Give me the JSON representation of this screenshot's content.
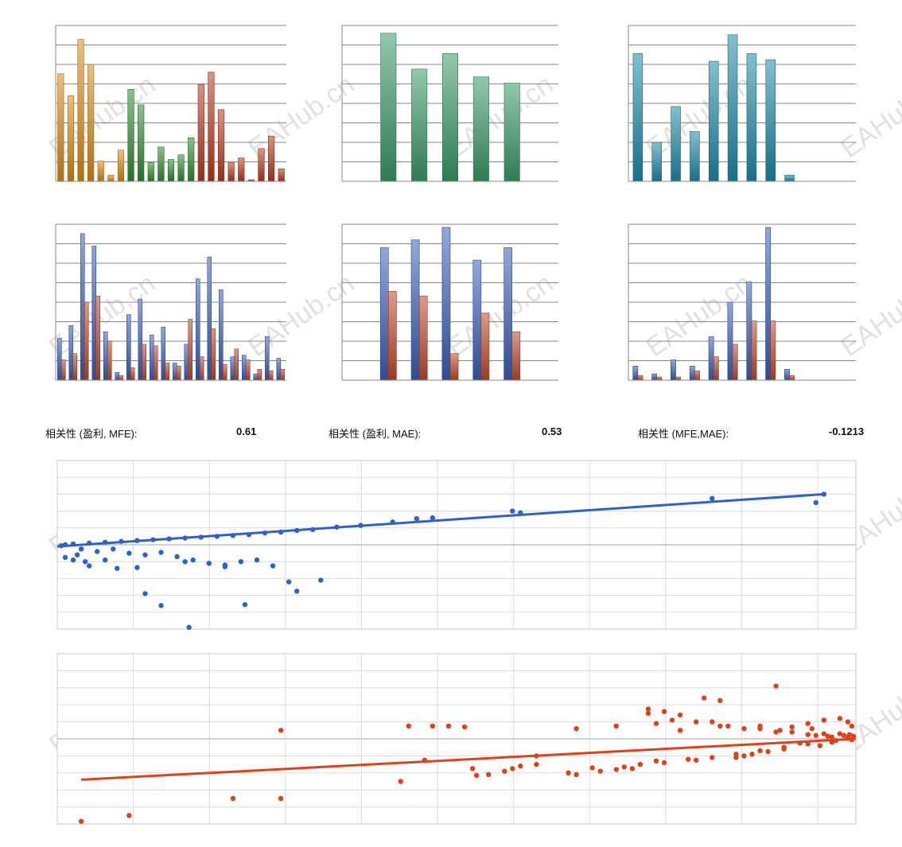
{
  "watermark": "EAHub.cn",
  "correlations": [
    {
      "label": "相关性 (盈利, MFE):",
      "value": "0.61"
    },
    {
      "label": "相关性 (盈利, MAE):",
      "value": "0.53"
    },
    {
      "label": "相关性 (MFE,MAE):",
      "value": "-0.1213"
    }
  ],
  "colors": {
    "orange": "#d98a1a",
    "green": "#2f8a2f",
    "red": "#b83a1e",
    "teal_green": "#3a9a66",
    "cyan": "#1f8aa8",
    "blue": "#3a5fb8",
    "brick": "#c04a2a",
    "scatter_blue": "#2f62c9",
    "scatter_red": "#e0401a"
  },
  "chart_data": [
    {
      "type": "bar",
      "ylim": [
        0,
        100
      ],
      "gridlines": 8,
      "values": [
        69,
        55,
        91,
        75,
        13,
        4,
        20,
        59,
        49,
        12,
        22,
        14,
        17,
        28,
        62,
        70,
        46,
        12,
        15,
        1,
        21,
        29,
        8
      ],
      "color_groups": [
        {
          "start": 0,
          "end": 7,
          "color": "orange"
        },
        {
          "start": 7,
          "end": 14,
          "color": "green"
        },
        {
          "start": 14,
          "end": 23,
          "color": "red"
        }
      ]
    },
    {
      "type": "bar",
      "ylim": [
        0,
        100
      ],
      "gridlines": 8,
      "values": [
        95,
        72,
        82,
        67,
        63
      ],
      "slots": 7,
      "start_slot": 1,
      "color_groups": [
        {
          "start": 0,
          "end": 5,
          "color": "teal_green"
        }
      ]
    },
    {
      "type": "bar",
      "ylim": [
        0,
        100
      ],
      "gridlines": 8,
      "values": [
        82,
        25,
        48,
        32,
        77,
        94,
        82,
        78,
        4
      ],
      "slots": 12,
      "start_slot": 0,
      "color_groups": [
        {
          "start": 0,
          "end": 9,
          "color": "cyan"
        }
      ]
    },
    {
      "type": "bar",
      "ylim": [
        0,
        100
      ],
      "gridlines": 8,
      "series": [
        {
          "color": "blue",
          "values": [
            27,
            35,
            94,
            86,
            31,
            5,
            42,
            52,
            29,
            34,
            11,
            23,
            65,
            79,
            58,
            15,
            16,
            4,
            28,
            14
          ]
        },
        {
          "color": "brick",
          "values": [
            13,
            17,
            50,
            54,
            25,
            3,
            8,
            23,
            22,
            11,
            9,
            39,
            15,
            33,
            10,
            20,
            13,
            7,
            6,
            7
          ]
        }
      ],
      "slots": 20
    },
    {
      "type": "bar",
      "ylim": [
        0,
        100
      ],
      "gridlines": 8,
      "series": [
        {
          "color": "blue",
          "values": [
            85,
            90,
            98,
            77,
            85
          ]
        },
        {
          "color": "brick",
          "values": [
            57,
            54,
            17,
            43,
            31
          ]
        }
      ],
      "slots": 7,
      "start_slot": 1
    },
    {
      "type": "bar",
      "ylim": [
        0,
        100
      ],
      "gridlines": 8,
      "series": [
        {
          "color": "blue",
          "values": [
            9,
            4,
            13,
            9,
            28,
            50,
            63,
            98,
            7
          ]
        },
        {
          "color": "brick",
          "values": [
            3,
            2,
            2,
            6,
            15,
            23,
            38,
            38,
            3
          ]
        }
      ],
      "slots": 12,
      "start_slot": 0
    },
    {
      "type": "scatter",
      "xlim": [
        0,
        1000
      ],
      "ylim": [
        -100,
        100
      ],
      "color": "scatter_blue",
      "trend": [
        [
          0,
          -2
        ],
        [
          960,
          60
        ]
      ],
      "points": [
        [
          960,
          60
        ],
        [
          950,
          50
        ],
        [
          820,
          55
        ],
        [
          580,
          38
        ],
        [
          570,
          40
        ],
        [
          470,
          32
        ],
        [
          450,
          31
        ],
        [
          420,
          27
        ],
        [
          380,
          23
        ],
        [
          350,
          21
        ],
        [
          320,
          18
        ],
        [
          300,
          17
        ],
        [
          280,
          15
        ],
        [
          260,
          14
        ],
        [
          240,
          12
        ],
        [
          220,
          11
        ],
        [
          200,
          10
        ],
        [
          180,
          9
        ],
        [
          160,
          8
        ],
        [
          140,
          7
        ],
        [
          120,
          6
        ],
        [
          100,
          5
        ],
        [
          80,
          4
        ],
        [
          60,
          3
        ],
        [
          40,
          2
        ],
        [
          20,
          1
        ],
        [
          10,
          0
        ],
        [
          5,
          -1
        ],
        [
          30,
          -5
        ],
        [
          50,
          -8
        ],
        [
          70,
          -5
        ],
        [
          90,
          -10
        ],
        [
          110,
          -12
        ],
        [
          130,
          -9
        ],
        [
          150,
          -14
        ],
        [
          170,
          -18
        ],
        [
          190,
          -22
        ],
        [
          210,
          -26
        ],
        [
          230,
          -20
        ],
        [
          270,
          -25
        ],
        [
          290,
          -44
        ],
        [
          330,
          -42
        ],
        [
          300,
          -55
        ],
        [
          10,
          -15
        ],
        [
          20,
          -18
        ],
        [
          35,
          -20
        ],
        [
          25,
          -12
        ],
        [
          40,
          -25
        ],
        [
          60,
          -18
        ],
        [
          75,
          -28
        ],
        [
          100,
          -27
        ],
        [
          110,
          -58
        ],
        [
          130,
          -72
        ],
        [
          165,
          -98
        ],
        [
          235,
          -71
        ],
        [
          160,
          -20
        ],
        [
          210,
          -24
        ],
        [
          250,
          -18
        ]
      ]
    },
    {
      "type": "scatter",
      "xlim": [
        -1000,
        0
      ],
      "ylim": [
        -100,
        100
      ],
      "color": "scatter_red",
      "trend": [
        [
          -970,
          -48
        ],
        [
          0,
          0
        ]
      ],
      "points": [
        [
          -970,
          -97
        ],
        [
          -910,
          -90
        ],
        [
          -780,
          -70
        ],
        [
          -720,
          -70
        ],
        [
          -720,
          10
        ],
        [
          -570,
          -50
        ],
        [
          -560,
          15
        ],
        [
          -540,
          -25
        ],
        [
          -530,
          15
        ],
        [
          -510,
          15
        ],
        [
          -490,
          14
        ],
        [
          -480,
          -35
        ],
        [
          -475,
          -43
        ],
        [
          -460,
          -42
        ],
        [
          -430,
          -35
        ],
        [
          -420,
          -32
        ],
        [
          -400,
          -20
        ],
        [
          -360,
          -40
        ],
        [
          -350,
          -42
        ],
        [
          -320,
          -38
        ],
        [
          -300,
          -36
        ],
        [
          -280,
          -35
        ],
        [
          -270,
          -30
        ],
        [
          -260,
          35
        ],
        [
          -250,
          18
        ],
        [
          -240,
          -28
        ],
        [
          -220,
          10
        ],
        [
          -200,
          -25
        ],
        [
          -190,
          48
        ],
        [
          -180,
          20
        ],
        [
          -170,
          15
        ],
        [
          -160,
          15
        ],
        [
          -150,
          -22
        ],
        [
          -140,
          -20
        ],
        [
          -130,
          -18
        ],
        [
          -120,
          12
        ],
        [
          -110,
          -15
        ],
        [
          -100,
          8
        ],
        [
          -95,
          10
        ],
        [
          -90,
          -10
        ],
        [
          -80,
          8
        ],
        [
          -70,
          -5
        ],
        [
          -60,
          5
        ],
        [
          -55,
          12
        ],
        [
          -50,
          4
        ],
        [
          -45,
          -8
        ],
        [
          -40,
          6
        ],
        [
          -35,
          3
        ],
        [
          -30,
          2
        ],
        [
          -25,
          -2
        ],
        [
          -20,
          6
        ],
        [
          -15,
          4
        ],
        [
          -10,
          2
        ],
        [
          -8,
          5
        ],
        [
          -5,
          -1
        ],
        [
          -3,
          3
        ],
        [
          -100,
          62
        ],
        [
          -170,
          45
        ],
        [
          -230,
          22
        ],
        [
          -300,
          15
        ],
        [
          -350,
          12
        ],
        [
          -400,
          -30
        ],
        [
          -440,
          -38
        ],
        [
          -330,
          -34
        ],
        [
          -290,
          -33
        ],
        [
          -250,
          -26
        ],
        [
          -210,
          -24
        ],
        [
          -180,
          -22
        ],
        [
          -150,
          -18
        ],
        [
          -120,
          -14
        ],
        [
          -90,
          -12
        ],
        [
          -60,
          -6
        ],
        [
          -30,
          -4
        ],
        [
          -200,
          20
        ],
        [
          -220,
          28
        ],
        [
          -240,
          32
        ],
        [
          -260,
          30
        ],
        [
          -140,
          12
        ],
        [
          -120,
          15
        ],
        [
          -80,
          14
        ],
        [
          -60,
          18
        ],
        [
          -40,
          22
        ],
        [
          -20,
          24
        ],
        [
          -10,
          20
        ],
        [
          -5,
          15
        ]
      ]
    }
  ]
}
